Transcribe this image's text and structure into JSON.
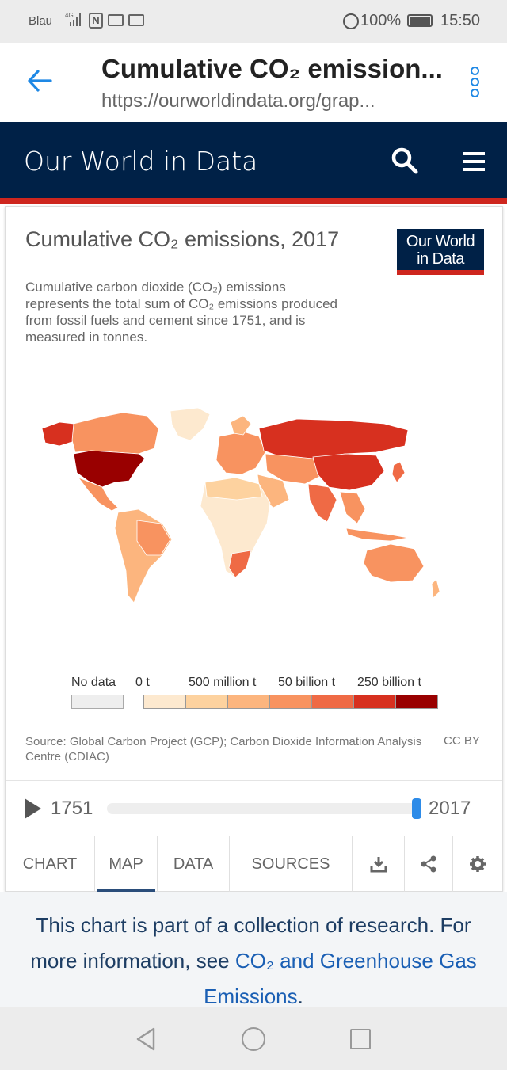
{
  "status_bar": {
    "carrier": "Blau",
    "network": "4G",
    "battery": "100%",
    "time": "15:50"
  },
  "browser": {
    "title": "Cumulative CO₂ emission...",
    "url": "https://ourworldindata.org/grap..."
  },
  "site_nav": {
    "brand": "Our World in Data"
  },
  "chart": {
    "title": "Cumulative CO₂ emissions, 2017",
    "subtitle": "Cumulative carbon dioxide (CO₂) emissions represents the total sum of CO₂ emissions produced from fossil fuels and cement since 1751, and is measured in tonnes.",
    "logo_line1": "Our World",
    "logo_line2": "in Data",
    "legend": {
      "no_data": "No data",
      "labels": [
        "0 t",
        "500 million t",
        "50 billion t",
        "250 billion t"
      ],
      "colors": [
        "#fde9cf",
        "#fdd29f",
        "#fcb57e",
        "#f89360",
        "#ef6a45",
        "#d7301f",
        "#990000"
      ]
    },
    "source": "Source: Global Carbon Project (GCP); Carbon Dioxide Information Analysis Centre (CDIAC)",
    "license": "CC BY",
    "timeline": {
      "start": "1751",
      "end": "2017",
      "position": 1.0
    }
  },
  "tabs": [
    {
      "label": "CHART"
    },
    {
      "label": "MAP",
      "active": true
    },
    {
      "label": "DATA"
    },
    {
      "label": "SOURCES"
    }
  ],
  "tab_icons": [
    "download-icon",
    "share-icon",
    "settings-icon"
  ],
  "note": {
    "text": "This chart is part of a collection of research. For more information, see ",
    "link": "CO₂ and Greenhouse Gas Emissions",
    "end": "."
  }
}
